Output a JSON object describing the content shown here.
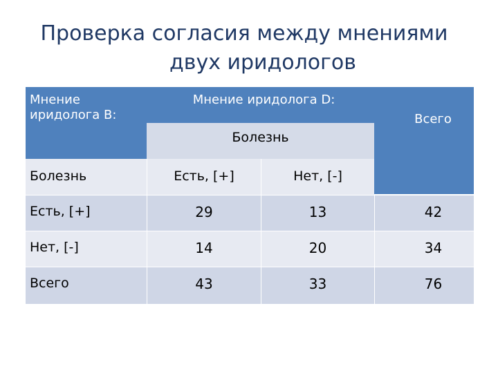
{
  "title": {
    "line1": "Проверка согласия между мнениями",
    "line2": "двух иридологов"
  },
  "table": {
    "corner_label": "Мнение иридолога В:",
    "col_group_label": "Мнение иридолога  D:",
    "col_subgroup_label": "Болезнь",
    "total_header": "Всего",
    "row_group_label": "Болезнь",
    "col_headers": [
      "Есть, [+]",
      "Нет, [-]"
    ],
    "rows": [
      {
        "label": "Есть, [+]",
        "values": [
          "29",
          "13",
          "42"
        ]
      },
      {
        "label": "Нет, [-]",
        "values": [
          "14",
          "20",
          "34"
        ]
      },
      {
        "label": "Всего",
        "values": [
          "43",
          "33",
          "76"
        ]
      }
    ]
  },
  "colors": {
    "title": "#1f3864",
    "header_blue": "#4f81bd",
    "row_dark": "#cfd6e6",
    "row_light": "#e7eaf2"
  }
}
